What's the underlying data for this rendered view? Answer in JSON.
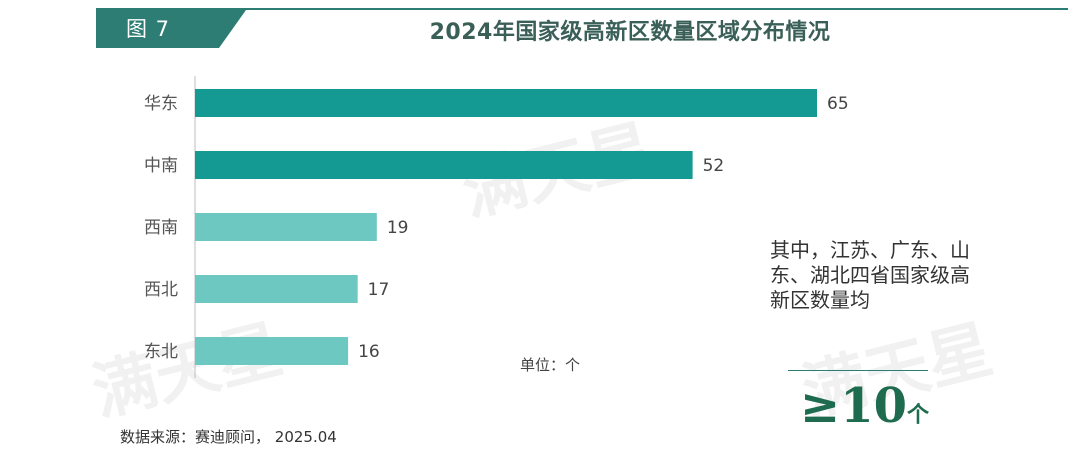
{
  "header": {
    "figure_tag": "图 7",
    "title": "2024年国家级高新区数量区域分布情况"
  },
  "chart_data": {
    "type": "bar",
    "orientation": "horizontal",
    "title": "2024年国家级高新区数量区域分布情况",
    "categories": [
      "华东",
      "中南",
      "西南",
      "西北",
      "东北"
    ],
    "values": [
      65,
      52,
      19,
      17,
      16
    ],
    "xlim": [
      0,
      70
    ],
    "unit": "单位：个",
    "colors": [
      "#159a93",
      "#159a93",
      "#6dc8c1",
      "#6dc8c1",
      "#6dc8c1"
    ]
  },
  "note": {
    "text": "其中，江苏、广东、山东、湖北四省国家级高新区数量均",
    "stat_symbol": "≥10",
    "stat_unit": "个"
  },
  "source": "数据来源：赛迪顾问， 2025.04",
  "watermark": "满天星"
}
